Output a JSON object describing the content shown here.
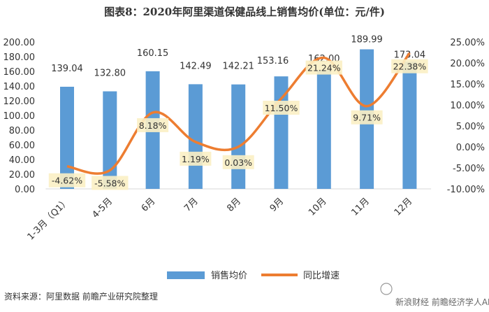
{
  "chart_data": {
    "type": "bar",
    "title": "图表8：2020年阿里渠道保健品线上销售均价(单位：元/件)",
    "categories": [
      "1-3月（Q1）",
      "4-5月",
      "6月",
      "7月",
      "8月",
      "9月",
      "10月",
      "11月",
      "12月"
    ],
    "series": [
      {
        "name": "销售均价",
        "type": "bar",
        "axis": "left",
        "values": [
          139.04,
          132.8,
          160.15,
          142.49,
          142.21,
          153.16,
          162.0,
          189.99,
          173.04
        ],
        "labels": [
          "139.04",
          "132.80",
          "160.15",
          "142.49",
          "142.21",
          "153.16",
          "162.00",
          "189.99",
          "173.04"
        ],
        "color": "#5b9bd5"
      },
      {
        "name": "同比增速",
        "type": "line",
        "axis": "right",
        "values": [
          -4.62,
          -5.58,
          8.18,
          1.19,
          0.03,
          11.5,
          21.24,
          9.71,
          22.38
        ],
        "labels": [
          "-4.62%",
          "-5.58%",
          "8.18%",
          "1.19%",
          "0.03%",
          "11.50%",
          "21.24%",
          "9.71%",
          "22.38%"
        ],
        "color": "#ed7d31"
      }
    ],
    "y_left": {
      "ylim": [
        0,
        200
      ],
      "ticks": [
        "0.00",
        "20.00",
        "40.00",
        "60.00",
        "80.00",
        "100.00",
        "120.00",
        "140.00",
        "160.00",
        "180.00",
        "200.00"
      ]
    },
    "y_right": {
      "ylim": [
        -10,
        25
      ],
      "ticks": [
        "-10.00%",
        "-5.00%",
        "0.00%",
        "5.00%",
        "10.00%",
        "15.00%",
        "20.00%",
        "25.00%"
      ]
    },
    "grid": false,
    "legend": "bottom"
  },
  "source": "资料来源：阿里数据 前瞻产业研究院整理",
  "watermark": "新浪财经 前瞻经济学人APP",
  "colors": {
    "label_highlight": "#fbefc4"
  }
}
